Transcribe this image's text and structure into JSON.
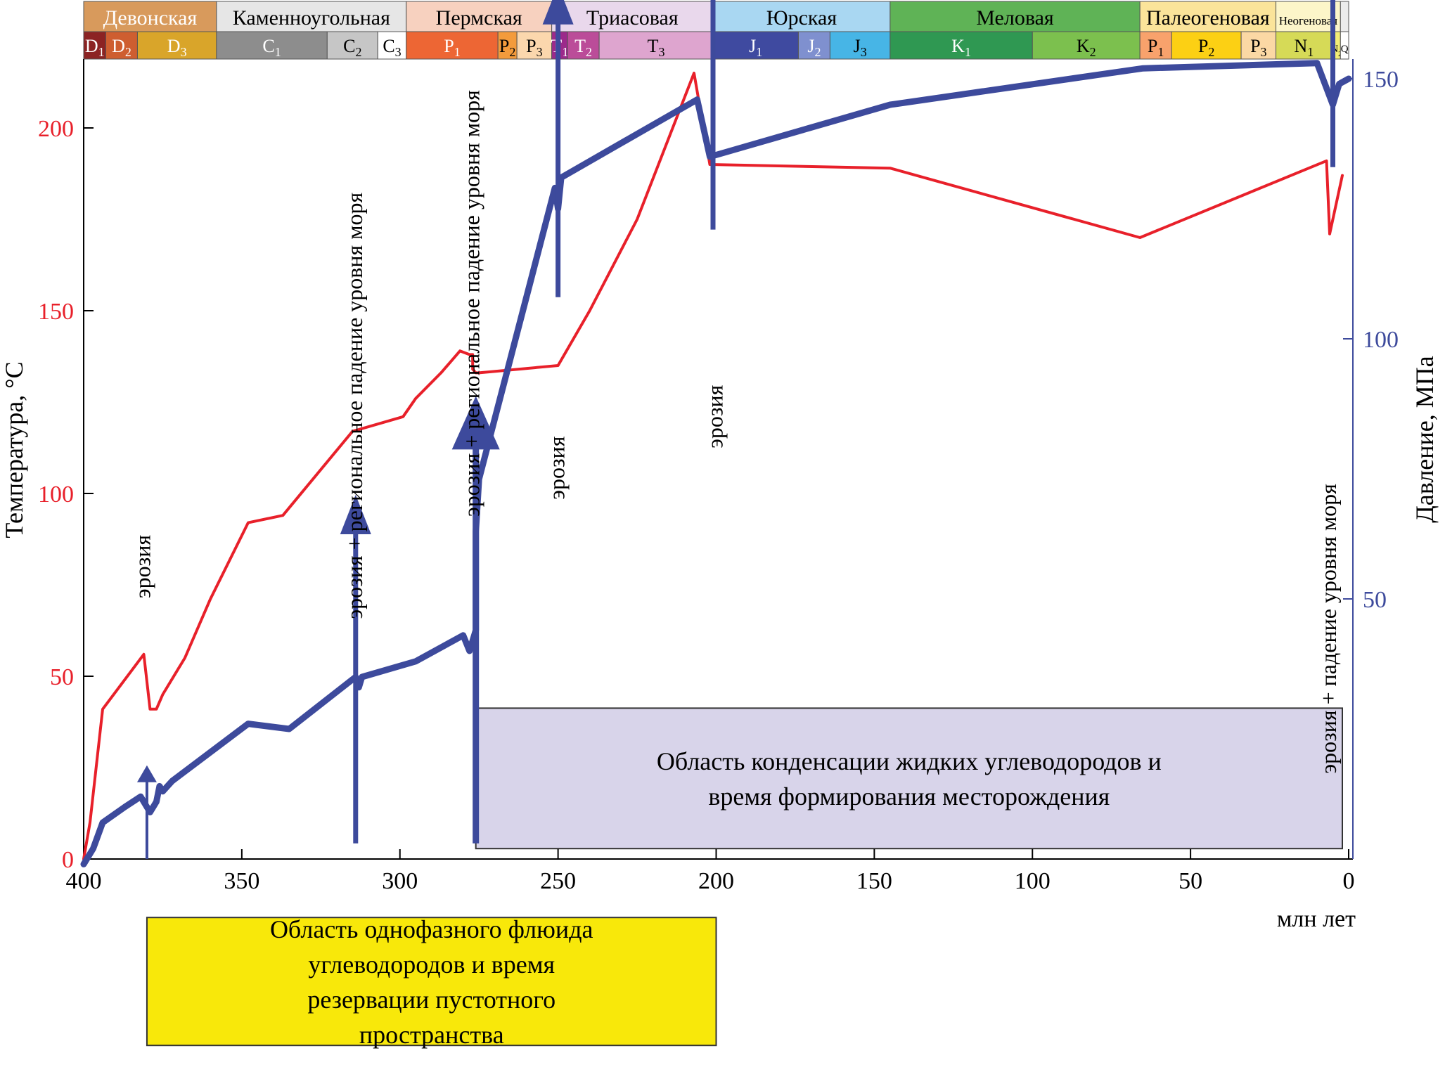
{
  "chart_data": {
    "type": "line",
    "xlabel": "млн лет",
    "ylabel_left": "Температура, °C",
    "ylabel_right": "Давление, МПа",
    "x_range": [
      400,
      0
    ],
    "x_reversed": true,
    "x_ticks": [
      400,
      350,
      300,
      250,
      200,
      150,
      100,
      50,
      0
    ],
    "y_left_range": [
      0,
      215
    ],
    "y_left_ticks": [
      0,
      50,
      100,
      150,
      200
    ],
    "y_right_range": [
      -2,
      152
    ],
    "y_right_ticks": [
      50,
      100,
      150
    ],
    "colors": {
      "temperature": "#e8202a",
      "pressure": "#3d4a9c",
      "axis_right": "#3d4a9c",
      "axis_left": "#000000",
      "tick_left": "#e8202a"
    },
    "series": [
      {
        "name": "Температура",
        "axis": "left",
        "x": [
          400,
          398,
          394,
          381,
          379,
          377,
          375,
          368,
          360,
          352,
          348,
          337,
          315,
          299,
          295,
          287,
          281,
          278,
          277,
          277,
          276,
          275,
          250,
          240,
          225,
          207,
          202,
          145,
          66,
          7,
          6,
          2
        ],
        "y": [
          0,
          10,
          41,
          56,
          41,
          41,
          45,
          55,
          71,
          85,
          92,
          94,
          117,
          121,
          126,
          133,
          139,
          138,
          138,
          134,
          133,
          133,
          135,
          150,
          175,
          215,
          190,
          189,
          170,
          191,
          171,
          187
        ]
      },
      {
        "name": "Давление",
        "axis": "right",
        "x": [
          400,
          397,
          394,
          387,
          382,
          379,
          377,
          376,
          375,
          372,
          348,
          335,
          314,
          313,
          312,
          295,
          283,
          280,
          278,
          276,
          276,
          275,
          251,
          250,
          249,
          206,
          202,
          145,
          65,
          10,
          5,
          3,
          0
        ],
        "y": [
          -1,
          2,
          7,
          10,
          12,
          9,
          11,
          14,
          13,
          15,
          26,
          25,
          35,
          33,
          35,
          38,
          42,
          43,
          40,
          44,
          63,
          73,
          129,
          125,
          131,
          146,
          135,
          145,
          152,
          153,
          145,
          149,
          150
        ]
      }
    ],
    "periods": [
      {
        "label": "Девонская",
        "start": 400,
        "end": 358,
        "color": "#d89a5c"
      },
      {
        "label": "Каменноугольная",
        "start": 358,
        "end": 298,
        "color": "#e6e6e6"
      },
      {
        "label": "Пермская",
        "start": 298,
        "end": 252,
        "color": "#f7d1bf"
      },
      {
        "label": "Триасовая",
        "start": 252,
        "end": 201,
        "color": "#e9d8ec"
      },
      {
        "label": "Юрская",
        "start": 201,
        "end": 145,
        "color": "#a9d7f2"
      },
      {
        "label": "Меловая",
        "start": 145,
        "end": 66,
        "color": "#5fb356"
      },
      {
        "label": "Палеогеновая",
        "start": 66,
        "end": 23,
        "color": "#fbe49a"
      },
      {
        "label": "Неогеновая",
        "start": 23,
        "end": 2.6,
        "color": "#fcf5c9"
      },
      {
        "label": "",
        "start": 2.6,
        "end": 0,
        "color": "#ececec"
      }
    ],
    "epochs": [
      {
        "main": "D",
        "sub": "1",
        "start": 400,
        "end": 393,
        "color": "#8c2323",
        "text": "#ffffff"
      },
      {
        "main": "D",
        "sub": "2",
        "start": 393,
        "end": 383,
        "color": "#ce5e30",
        "text": "#ffffff"
      },
      {
        "main": "D",
        "sub": "3",
        "start": 383,
        "end": 358,
        "color": "#d9a52a",
        "text": "#ffffff"
      },
      {
        "main": "C",
        "sub": "1",
        "start": 358,
        "end": 323,
        "color": "#8d8d8d",
        "text": "#ffffff"
      },
      {
        "main": "C",
        "sub": "2",
        "start": 323,
        "end": 307,
        "color": "#c6c6c6",
        "text": "#000000"
      },
      {
        "main": "C",
        "sub": "3",
        "start": 307,
        "end": 298,
        "color": "#ffffff",
        "text": "#000000"
      },
      {
        "main": "P",
        "sub": "1",
        "start": 298,
        "end": 269,
        "color": "#ed6634",
        "text": "#ffffff"
      },
      {
        "main": "P",
        "sub": "2",
        "start": 269,
        "end": 263,
        "color": "#f39b3c",
        "text": "#000000"
      },
      {
        "main": "P",
        "sub": "3",
        "start": 263,
        "end": 252,
        "color": "#fbd7ad",
        "text": "#000000"
      },
      {
        "main": "T",
        "sub": "1",
        "start": 252,
        "end": 247,
        "color": "#9c2a8b",
        "text": "#ffffff"
      },
      {
        "main": "T",
        "sub": "2",
        "start": 247,
        "end": 237,
        "color": "#bb4c99",
        "text": "#ffffff"
      },
      {
        "main": "T",
        "sub": "3",
        "start": 237,
        "end": 201,
        "color": "#dea5cf",
        "text": "#000000"
      },
      {
        "main": "J",
        "sub": "1",
        "start": 201,
        "end": 174,
        "color": "#3f4aa0",
        "text": "#ffffff"
      },
      {
        "main": "J",
        "sub": "2",
        "start": 174,
        "end": 164,
        "color": "#7f90cf",
        "text": "#ffffff"
      },
      {
        "main": "J",
        "sub": "3",
        "start": 164,
        "end": 145,
        "color": "#47b5e6",
        "text": "#000000"
      },
      {
        "main": "K",
        "sub": "1",
        "start": 145,
        "end": 100,
        "color": "#2f9852",
        "text": "#ffffff"
      },
      {
        "main": "K",
        "sub": "2",
        "start": 100,
        "end": 66,
        "color": "#7cc04e",
        "text": "#000000"
      },
      {
        "main": "P",
        "sub": "1",
        "start": 66,
        "end": 56,
        "color": "#f8a26c",
        "text": "#000000"
      },
      {
        "main": "P",
        "sub": "2",
        "start": 56,
        "end": 34,
        "color": "#fcd014",
        "text": "#000000"
      },
      {
        "main": "P",
        "sub": "3",
        "start": 34,
        "end": 23,
        "color": "#fbd8a4",
        "text": "#000000"
      },
      {
        "main": "N",
        "sub": "1",
        "start": 23,
        "end": 5.3,
        "color": "#d6da57",
        "text": "#000000"
      },
      {
        "main": "N",
        "sub": "2",
        "start": 5.3,
        "end": 2.6,
        "color": "#f4ee75",
        "text": "#000000"
      },
      {
        "main": "Q",
        "sub": "",
        "start": 2.6,
        "end": 0,
        "color": "#ffffff",
        "text": "#000000"
      }
    ],
    "arrows": [
      {
        "x": 380,
        "from": 0,
        "to": 18,
        "size": "small"
      },
      {
        "x": 314,
        "from": 3,
        "to": 70,
        "size": "medium"
      },
      {
        "x": 276,
        "from": 3,
        "to": 89,
        "size": "large"
      },
      {
        "x": 250,
        "from": 108,
        "to": 168,
        "size": "medium"
      },
      {
        "x": 201,
        "from": 121,
        "to": 182,
        "size": "medium"
      },
      {
        "x": 5,
        "from": 133,
        "to": 195,
        "size": "medium"
      }
    ],
    "annotations": [
      {
        "text": "эрозия",
        "x": 381,
        "y": 80,
        "size": 26
      },
      {
        "text": "эрозия + региональное падение уровня моря",
        "x": 314,
        "y": 124,
        "size": 26
      },
      {
        "text": "эрозия + региональное падение уровня моря",
        "x": 277,
        "y": 152,
        "size": 26
      },
      {
        "text": "эрозия",
        "x": 250,
        "y": 107,
        "size": 26
      },
      {
        "text": "эрозия",
        "x": 200,
        "y": 121,
        "size": 26
      },
      {
        "text": "эрозия + падение уровня моря",
        "x": 6,
        "y": 63,
        "size": 26
      }
    ],
    "boxes": [
      {
        "id": "condensation",
        "lines": [
          "Область конденсации жидких углеводородов и",
          "время формирования месторождения"
        ],
        "x_start": 276,
        "x_end": 2,
        "y_top": 29,
        "y_bottom": 2,
        "color": "#d8d4ea"
      },
      {
        "id": "single-phase",
        "lines": [
          "Область однофазного флюида",
          "углеводородов и время",
          "резервации пустотного",
          "пространства"
        ],
        "x_start": 380,
        "x_end": 200,
        "y_top": -16,
        "y_bottom": -51,
        "color": "#f8e80a"
      }
    ]
  }
}
